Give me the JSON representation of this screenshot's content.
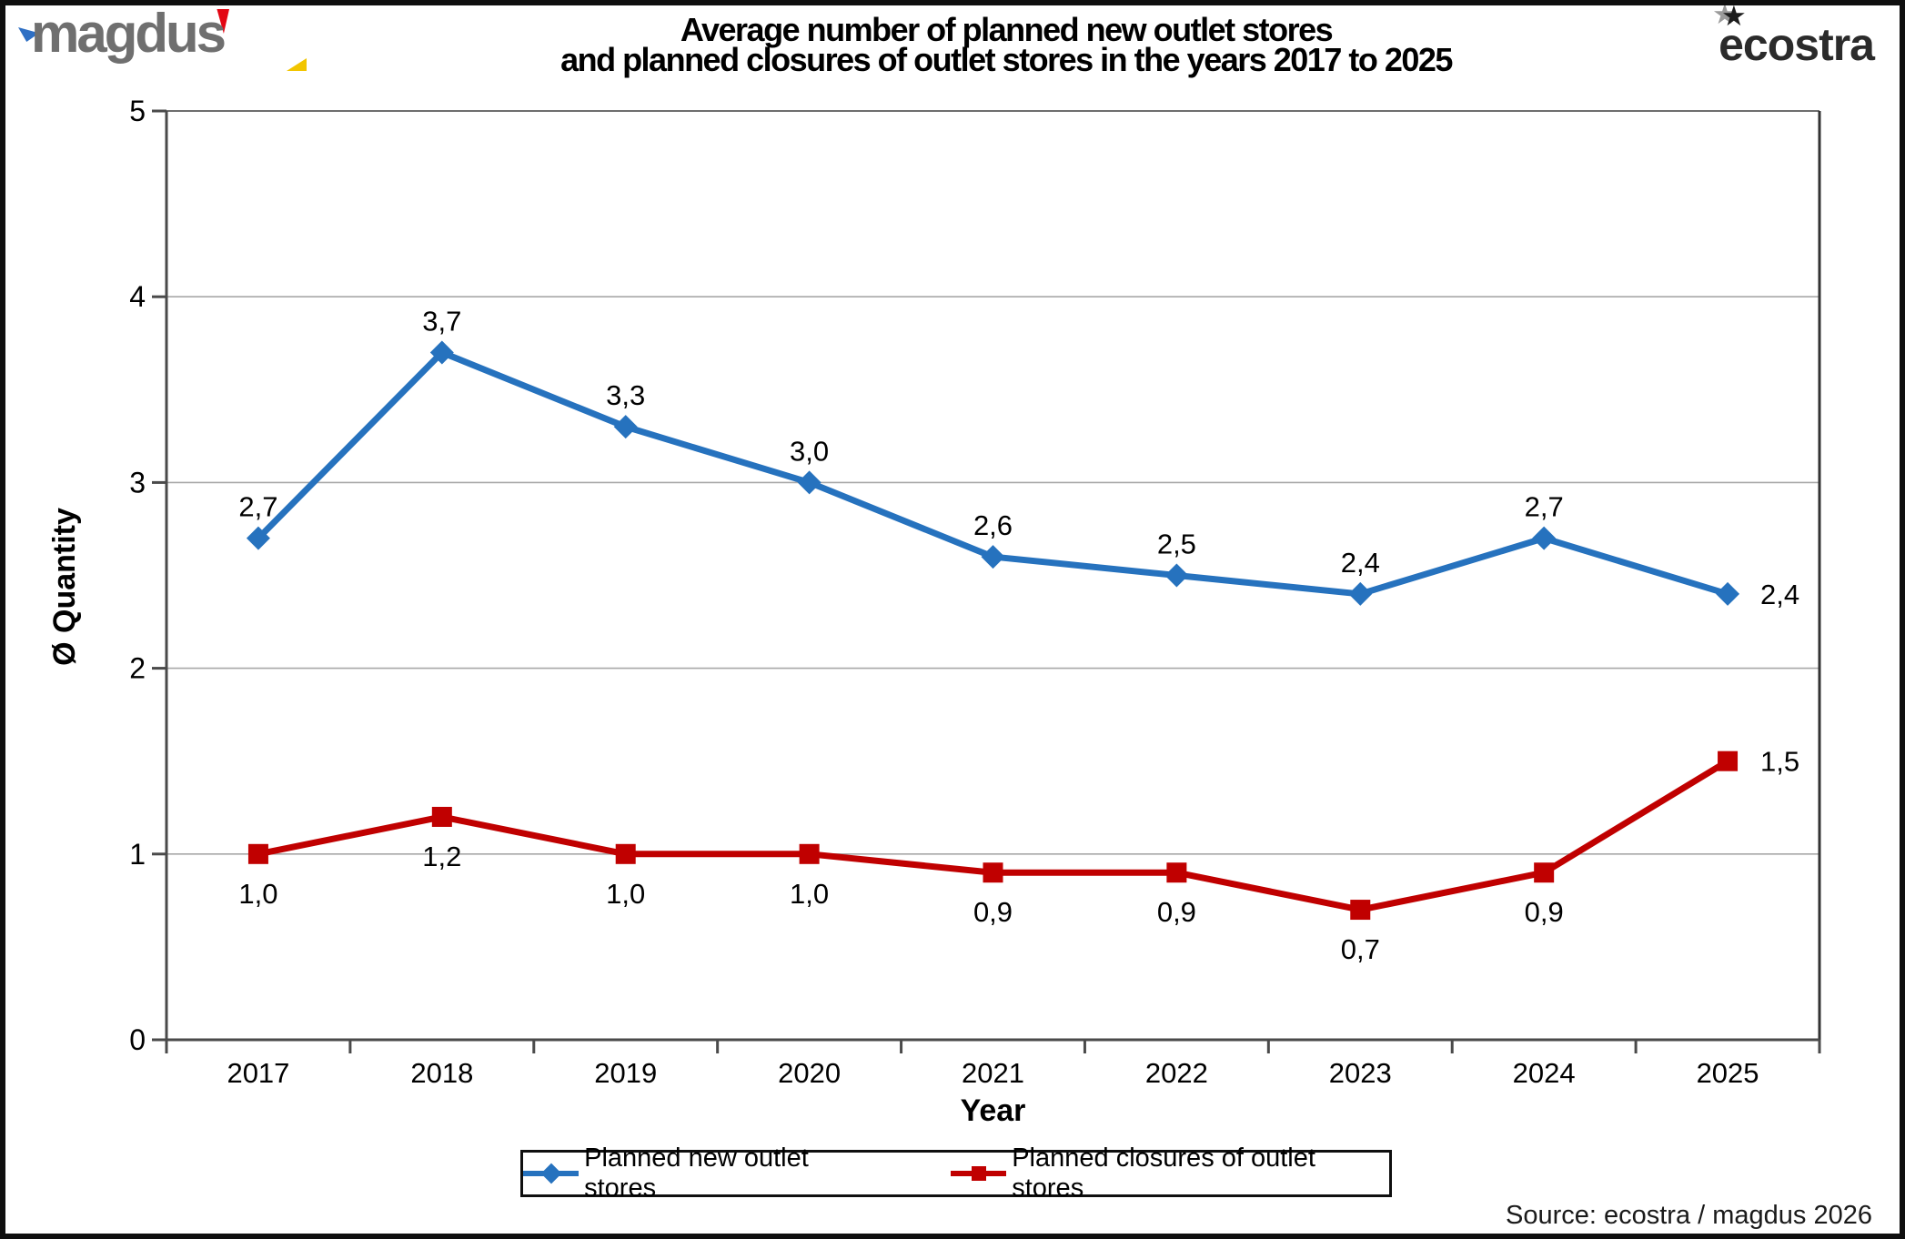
{
  "header": {
    "brand_left": "magdus",
    "brand_right": "ecostra",
    "star_icon": "★",
    "title_line1": "Average number of planned new outlet stores",
    "title_line2": "and planned closures of outlet stores in the years 2017 to 2025"
  },
  "chart_data": {
    "type": "line",
    "title": "Average number of planned new outlet stores and planned closures of outlet stores in the years 2017 to 2025",
    "categories": [
      "2017",
      "2018",
      "2019",
      "2020",
      "2021",
      "2022",
      "2023",
      "2024",
      "2025"
    ],
    "series": [
      {
        "name": "Planned new outlet stores",
        "color": "#2672BE",
        "marker": "diamond",
        "values": [
          2.7,
          3.7,
          3.3,
          3.0,
          2.6,
          2.5,
          2.4,
          2.7,
          2.4
        ],
        "point_labels": [
          "2,7",
          "3,7",
          "3,3",
          "3,0",
          "2,6",
          "2,5",
          "2,4",
          "2,7",
          "2,4"
        ],
        "label_placement": "above"
      },
      {
        "name": "Planned closures of outlet stores",
        "color": "#C00000",
        "marker": "square",
        "values": [
          1.0,
          1.2,
          1.0,
          1.0,
          0.9,
          0.9,
          0.7,
          0.9,
          1.5
        ],
        "point_labels": [
          "1,0",
          "1,2",
          "1,0",
          "1,0",
          "0,9",
          "0,9",
          "0,7",
          "0,9",
          "1,5"
        ],
        "label_placement": "below"
      }
    ],
    "xlabel": "Year",
    "ylabel": "Ø Quantity",
    "ylim": [
      0,
      5
    ],
    "yticks": [
      "0",
      "1",
      "2",
      "3",
      "4",
      "5"
    ],
    "grid": true,
    "legend_position": "bottom",
    "last_point_label_placement": "right"
  },
  "footer": {
    "source": "Source: ecostra / magdus 2026"
  }
}
